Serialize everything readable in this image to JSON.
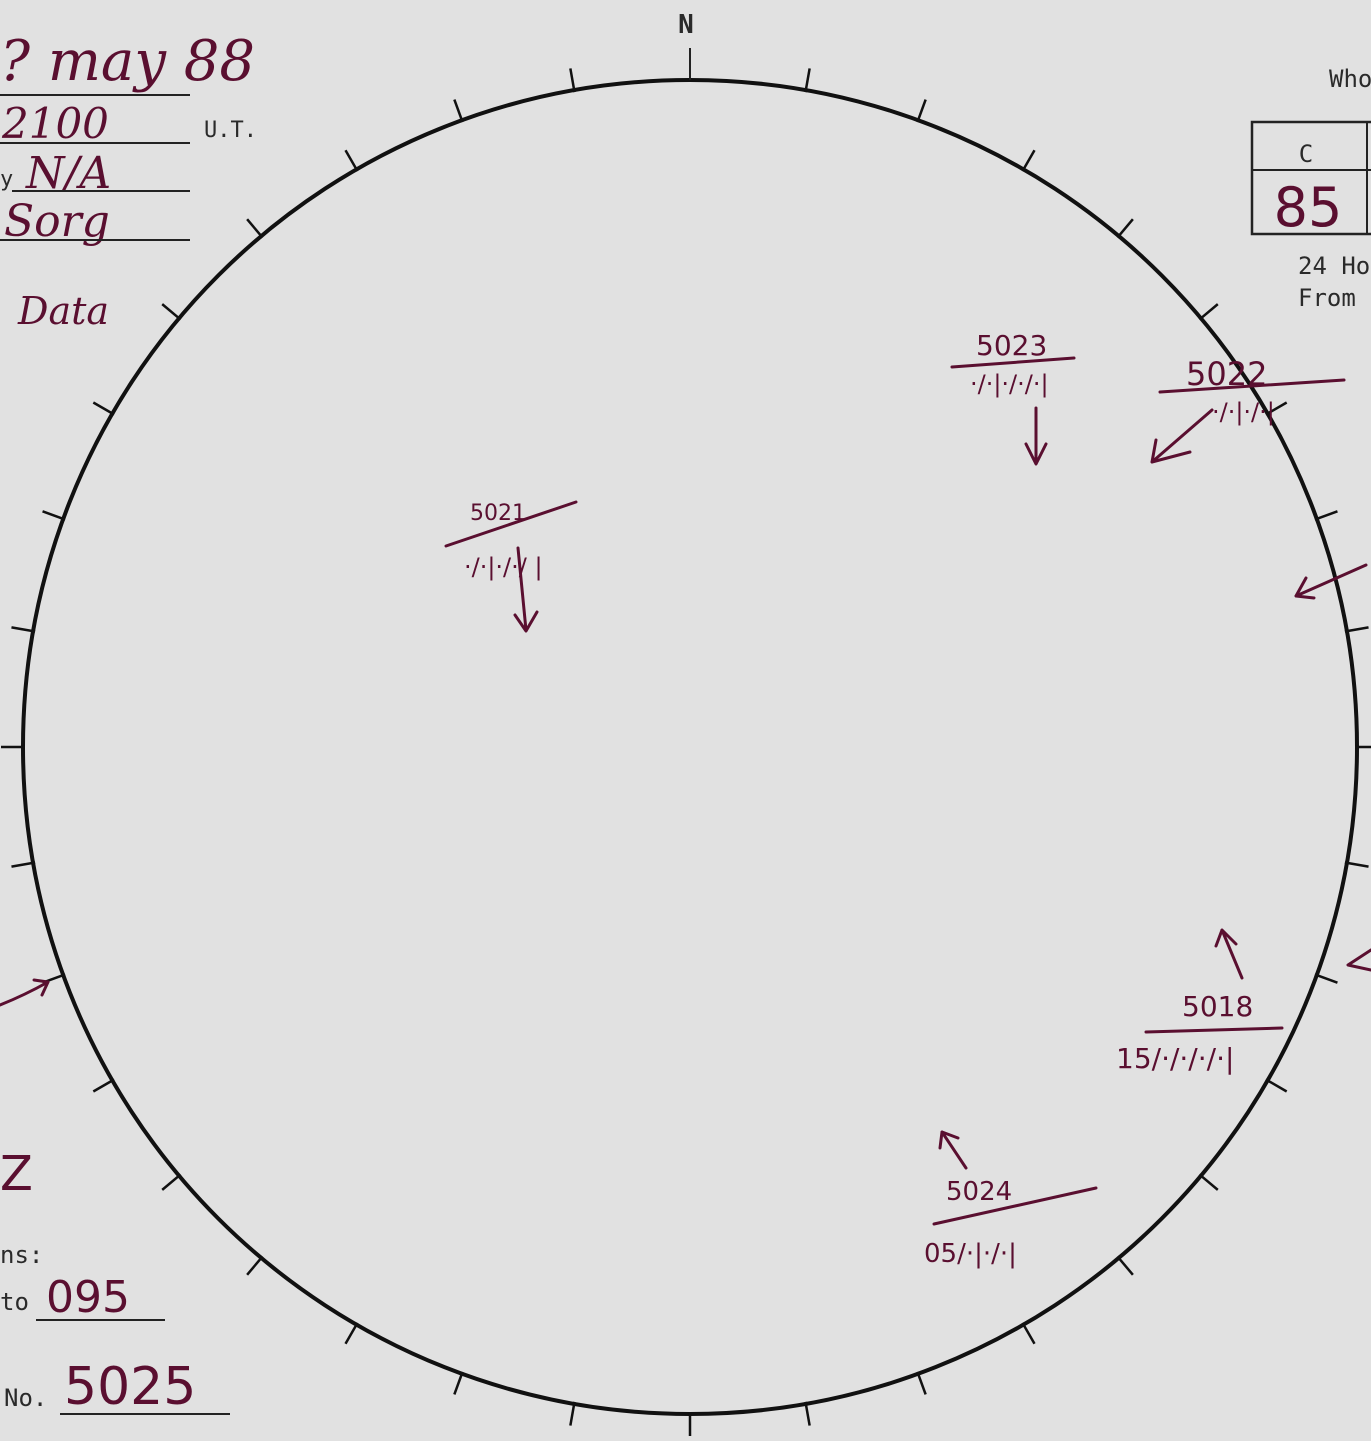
{
  "compass": {
    "north": "N"
  },
  "header": {
    "date": "? may 88",
    "time": "2100",
    "time_unit": "U.T.",
    "by_prefix": "y",
    "by_value": "N/A",
    "observer": "Sorg",
    "data_label": "Data"
  },
  "right_panel": {
    "who_label": "Who",
    "table_header": "C",
    "table_value": "85",
    "note_line1": "24 Ho",
    "note_line2": "From"
  },
  "bottom_left": {
    "mark": "Z",
    "ns_label": "ns:",
    "to_label": "to",
    "to_value": "095",
    "no_label": "No.",
    "no_value": "5025"
  },
  "stations": [
    {
      "id": "5021",
      "barbs": "·/·|·/·/ |"
    },
    {
      "id": "5023",
      "barbs": "·/·|·/·/·|"
    },
    {
      "id": "5022",
      "barbs": "·/·|·/·|"
    },
    {
      "id": "5018",
      "barbs": "15/·/·/·/·|"
    },
    {
      "id": "5024",
      "barbs": "05/·|·/·|"
    }
  ],
  "colors": {
    "ink": "#5a0f30",
    "paper": "#e1e1e1",
    "print": "#222222"
  }
}
